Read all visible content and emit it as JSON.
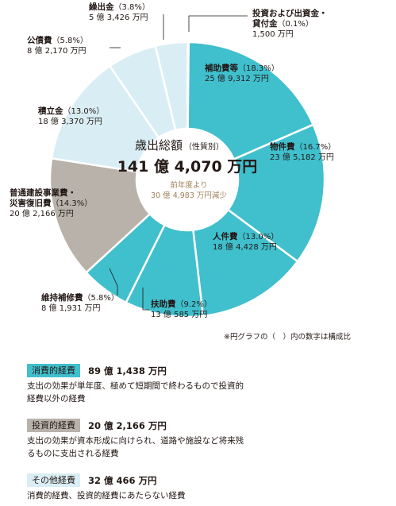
{
  "chart_data": {
    "type": "pie",
    "title": "歳出総額",
    "title_sub": "（性質別）",
    "total": "141 億 4,070 万円",
    "change": [
      "前年度より",
      "30 億 4,983 万円減少"
    ],
    "slices": [
      {
        "name": "投資および出資金・貸付金",
        "pct": 0.1,
        "pct_label": "（0.1%）",
        "value": "1,500 万円",
        "group": "other",
        "color": "#d9eef4"
      },
      {
        "name": "補助費等",
        "pct": 18.3,
        "pct_label": "（18.3%）",
        "value": "25 億 9,312 万円",
        "group": "consumption",
        "color": "#40bfcd"
      },
      {
        "name": "物件費",
        "pct": 16.7,
        "pct_label": "（16.7%）",
        "value": "23 億 5,182 万円",
        "group": "consumption",
        "color": "#40bfcd"
      },
      {
        "name": "人件費",
        "pct": 13.0,
        "pct_label": "（13.0%）",
        "value": "18 億 4,428 万円",
        "group": "consumption",
        "color": "#40bfcd"
      },
      {
        "name": "扶助費",
        "pct": 9.2,
        "pct_label": "（9.2%）",
        "value": "13 億 585 万円",
        "group": "consumption",
        "color": "#40bfcd"
      },
      {
        "name": "維持補修費",
        "pct": 5.8,
        "pct_label": "（5.8%）",
        "value": "8 億 1,931 万円",
        "group": "consumption",
        "color": "#40bfcd"
      },
      {
        "name": "普通建設事業費・災害復旧費",
        "pct": 14.3,
        "pct_label": "（14.3%）",
        "value": "20 億 2,166 万円",
        "group": "investment",
        "color": "#b8b2ab"
      },
      {
        "name": "積立金",
        "pct": 13.0,
        "pct_label": "（13.0%）",
        "value": "18 億 3,370 万円",
        "group": "other",
        "color": "#d9eef4"
      },
      {
        "name": "公債費",
        "pct": 5.8,
        "pct_label": "（5.8%）",
        "value": "8 億 2,170 万円",
        "group": "other",
        "color": "#d9eef4"
      },
      {
        "name": "繰出金",
        "pct": 3.8,
        "pct_label": "（3.8%）",
        "value": "5 億 3,426 万円",
        "group": "other",
        "color": "#d9eef4"
      }
    ],
    "labels": [
      {
        "lines": [
          "投資および出資金・",
          "貸付金（0.1%）",
          "1,500 万円"
        ]
      },
      {
        "lines": [
          "補助費等（18.3%）",
          "25 億 9,312 万円"
        ]
      },
      {
        "lines": [
          "物件費（16.7%）",
          "23 億 5,182 万円"
        ]
      },
      {
        "lines": [
          "人件費（13.0%）",
          "18 億 4,428 万円"
        ]
      },
      {
        "lines": [
          "扶助費（9.2%）",
          "13 億 585 万円"
        ]
      },
      {
        "lines": [
          "維持補修費（5.8%）",
          "8 億 1,931 万円"
        ]
      },
      {
        "lines": [
          "普通建設事業費・",
          "災害復旧費（14.3%）",
          "20 億 2,166 万円"
        ]
      },
      {
        "lines": [
          "積立金（13.0%）",
          "18 億 3,370 万円"
        ]
      },
      {
        "lines": [
          "公債費（5.8%）",
          "8 億 2,170 万円"
        ]
      },
      {
        "lines": [
          "繰出金（3.8%）",
          "5 億 3,426 万円"
        ]
      }
    ]
  },
  "note": "※円グラフの（　）内の数字は構成比",
  "legend": [
    {
      "label": "消費的経費",
      "value": "89 億 1,438 万円",
      "desc": "支出の効果が単年度、極めて短期間で終わるもので投資的経費以外の経費",
      "bg": "#40bfcd",
      "fg": "#231815"
    },
    {
      "label": "投資的経費",
      "value": "20 億 2,166 万円",
      "desc": "支出の効果が資本形成に向けられ、道路や施設など将来残るものに支出される経費",
      "bg": "#b8b2ab",
      "fg": "#231815"
    },
    {
      "label": "その他経費",
      "value": "32 億 466 万円",
      "desc": "消費的経費、投資的経費にあたらない経費",
      "bg": "#d9eef4",
      "fg": "#231815"
    }
  ]
}
